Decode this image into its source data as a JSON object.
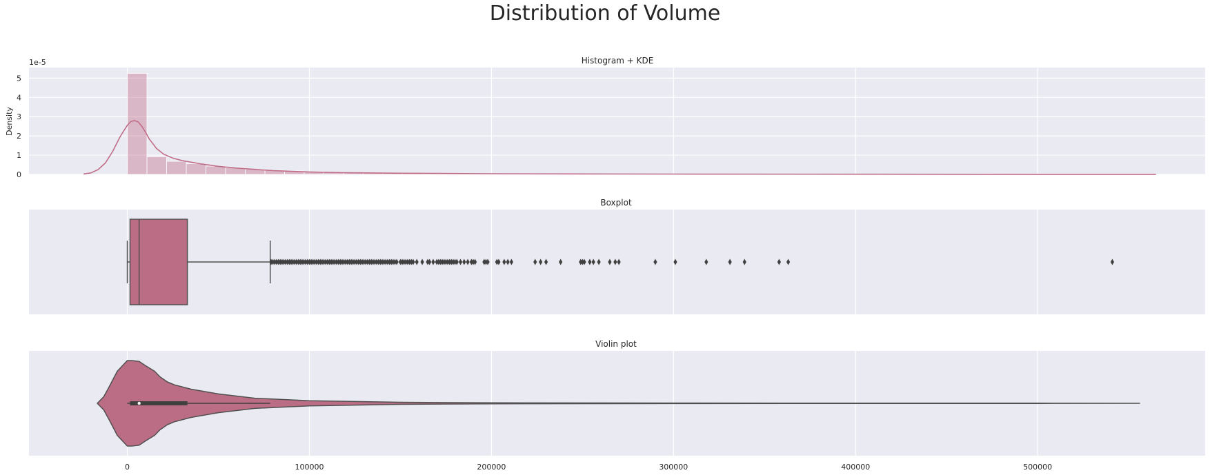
{
  "figure": {
    "title": "Distribution of Volume",
    "background": "#eaeaf2",
    "accent": "#c06c87",
    "grid": true
  },
  "chart_data": [
    {
      "type": "histogram",
      "title": "Histogram + KDE",
      "xlabel": "",
      "ylabel": "Density",
      "y_scale_label": "1e-5",
      "xlim": [
        -54000,
        592000
      ],
      "ylim": [
        0,
        5.55
      ],
      "xticks": [
        0,
        100000,
        200000,
        300000,
        400000,
        500000
      ],
      "xtick_labels": [
        "0",
        "100000",
        "200000",
        "300000",
        "400000",
        "500000"
      ],
      "yticks": [
        0,
        1,
        2,
        3,
        4,
        5
      ],
      "ytick_labels": [
        "0",
        "1",
        "2",
        "3",
        "4",
        "5"
      ],
      "bin_width": 10800,
      "bins": [
        {
          "x0": 0,
          "value": 5.25
        },
        {
          "x0": 10800,
          "value": 0.92
        },
        {
          "x0": 21600,
          "value": 0.68
        },
        {
          "x0": 32400,
          "value": 0.55
        },
        {
          "x0": 43200,
          "value": 0.43
        },
        {
          "x0": 54000,
          "value": 0.34
        },
        {
          "x0": 64800,
          "value": 0.27
        },
        {
          "x0": 75600,
          "value": 0.22
        },
        {
          "x0": 86400,
          "value": 0.18
        },
        {
          "x0": 97200,
          "value": 0.14
        },
        {
          "x0": 108000,
          "value": 0.11
        },
        {
          "x0": 118800,
          "value": 0.09
        },
        {
          "x0": 129600,
          "value": 0.07
        },
        {
          "x0": 140400,
          "value": 0.06
        },
        {
          "x0": 151200,
          "value": 0.05
        },
        {
          "x0": 162000,
          "value": 0.04
        },
        {
          "x0": 172800,
          "value": 0.035
        },
        {
          "x0": 183600,
          "value": 0.03
        },
        {
          "x0": 194400,
          "value": 0.02
        },
        {
          "x0": 205200,
          "value": 0.015
        }
      ],
      "kde": {
        "x": [
          -24000,
          -20000,
          -16000,
          -12000,
          -8000,
          -4000,
          0,
          2000,
          4000,
          6000,
          8000,
          10000,
          12000,
          16000,
          20000,
          25000,
          30000,
          40000,
          50000,
          60000,
          70000,
          80000,
          90000,
          100000,
          120000,
          150000,
          200000,
          250000,
          300000,
          400000,
          500000,
          565000
        ],
        "y": [
          0.02,
          0.08,
          0.25,
          0.6,
          1.2,
          1.95,
          2.55,
          2.75,
          2.8,
          2.72,
          2.5,
          2.2,
          1.85,
          1.35,
          1.05,
          0.85,
          0.72,
          0.55,
          0.42,
          0.33,
          0.26,
          0.2,
          0.16,
          0.13,
          0.09,
          0.06,
          0.035,
          0.025,
          0.018,
          0.01,
          0.005,
          0.002
        ]
      }
    },
    {
      "type": "box",
      "title": "Boxplot",
      "xlim": [
        -54000,
        592000
      ],
      "whisker_low": 0,
      "q1": 1500,
      "median": 6500,
      "q3": 33000,
      "whisker_high": 78500,
      "outliers": [
        79000,
        80000,
        81000,
        82000,
        83000,
        84000,
        85000,
        86000,
        87000,
        88000,
        89000,
        90000,
        91000,
        92000,
        93000,
        94000,
        95000,
        96000,
        97000,
        98000,
        99000,
        100000,
        101000,
        102000,
        103000,
        104000,
        105000,
        106000,
        107000,
        108000,
        109000,
        110000,
        111000,
        112000,
        113000,
        114000,
        115000,
        116000,
        117000,
        118000,
        119000,
        120000,
        121000,
        122000,
        123000,
        124000,
        125000,
        126000,
        127000,
        128000,
        129000,
        130000,
        131000,
        132000,
        133000,
        134000,
        135000,
        136000,
        137000,
        138000,
        139000,
        140000,
        141000,
        142000,
        143000,
        144000,
        145000,
        146000,
        147000,
        148000,
        150000,
        151000,
        152000,
        153000,
        154000,
        155000,
        156000,
        157000,
        159000,
        162000,
        165000,
        166000,
        168000,
        170000,
        171000,
        172000,
        173000,
        174000,
        175000,
        176000,
        177000,
        178000,
        179000,
        180000,
        181000,
        183000,
        185000,
        187000,
        189000,
        190000,
        191000,
        196000,
        197000,
        198000,
        203000,
        204000,
        207000,
        209000,
        211000,
        224000,
        227000,
        230000,
        238000,
        249000,
        250000,
        251000,
        254000,
        256000,
        259000,
        265000,
        268000,
        270000,
        290000,
        301000,
        318000,
        331000,
        339000,
        358000,
        363000,
        541000
      ]
    },
    {
      "type": "violin",
      "title": "Violin plot",
      "xlim": [
        -54000,
        592000
      ],
      "xticks": [
        0,
        100000,
        200000,
        300000,
        400000,
        500000
      ],
      "xtick_labels": [
        "0",
        "100000",
        "200000",
        "300000",
        "400000",
        "500000"
      ],
      "half_width_max": 1,
      "profile_x": [
        -16500,
        -13000,
        -10000,
        -5500,
        0,
        2500,
        6500,
        10000,
        15000,
        18000,
        22000,
        26000,
        35000,
        50000,
        70000,
        100000,
        150000,
        200000,
        300000,
        400000,
        500000,
        556000
      ],
      "profile_w": [
        0.0,
        0.15,
        0.38,
        0.75,
        1.0,
        1.0,
        0.98,
        0.88,
        0.75,
        0.62,
        0.5,
        0.43,
        0.33,
        0.22,
        0.12,
        0.06,
        0.025,
        0.012,
        0.006,
        0.004,
        0.003,
        0.0
      ],
      "inner_box": {
        "q1": 1500,
        "median": 6500,
        "q3": 33000,
        "whisker_low": 0,
        "whisker_high": 78500
      }
    }
  ]
}
